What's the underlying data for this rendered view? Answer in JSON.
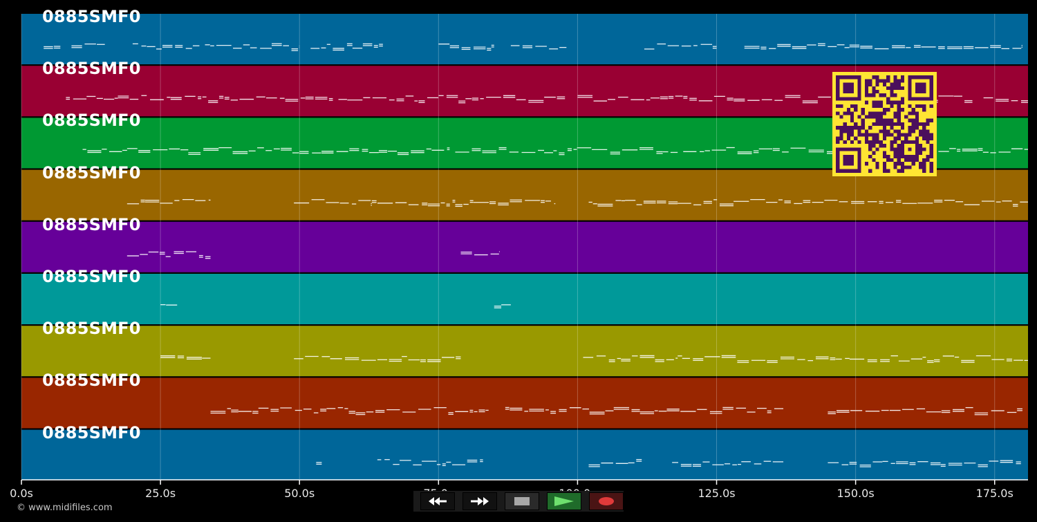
{
  "window": {
    "copyright": "© www.midifiles.com"
  },
  "timeline": {
    "duration_seconds": 181,
    "ticks": [
      {
        "t": 0,
        "label": "0.0s"
      },
      {
        "t": 25,
        "label": "25.0s"
      },
      {
        "t": 50,
        "label": "50.0s"
      },
      {
        "t": 75,
        "label": "75.0s"
      },
      {
        "t": 100,
        "label": "100.0s"
      },
      {
        "t": 125,
        "label": "125.0s"
      },
      {
        "t": 150,
        "label": "150.0s"
      },
      {
        "t": 175,
        "label": "175.0s"
      }
    ]
  },
  "tracks": [
    {
      "name": "0885SMF0",
      "color": "#006699"
    },
    {
      "name": "0885SMF0",
      "color": "#990033"
    },
    {
      "name": "0885SMF0",
      "color": "#009933"
    },
    {
      "name": "0885SMF0",
      "color": "#996600"
    },
    {
      "name": "0885SMF0",
      "color": "#660099"
    },
    {
      "name": "0885SMF0",
      "color": "#009999"
    },
    {
      "name": "0885SMF0",
      "color": "#999900"
    },
    {
      "name": "0885SMF0",
      "color": "#992600"
    },
    {
      "name": "0885SMF0",
      "color": "#006699"
    }
  ],
  "note_segments": [
    [
      [
        4,
        7
      ],
      [
        9,
        15
      ],
      [
        20,
        32
      ],
      [
        33,
        45
      ],
      [
        45,
        50
      ],
      [
        52,
        65
      ],
      [
        75,
        85
      ],
      [
        88,
        98
      ],
      [
        112,
        125
      ],
      [
        130,
        148
      ],
      [
        148,
        180
      ]
    ],
    [
      [
        8,
        56
      ],
      [
        57,
        98
      ],
      [
        100,
        150
      ],
      [
        150,
        171
      ],
      [
        173,
        181
      ]
    ],
    [
      [
        11,
        19
      ],
      [
        19,
        30
      ],
      [
        30,
        50
      ],
      [
        50,
        77
      ],
      [
        78,
        118
      ],
      [
        119,
        181
      ]
    ],
    [
      [
        19,
        34
      ],
      [
        49,
        63
      ],
      [
        63,
        78
      ],
      [
        78,
        96
      ],
      [
        102,
        118
      ],
      [
        118,
        181
      ]
    ],
    [
      [
        19,
        34
      ],
      [
        79,
        86
      ]
    ],
    [
      [
        25,
        28
      ],
      [
        85,
        88
      ]
    ],
    [
      [
        25,
        34
      ],
      [
        49,
        64
      ],
      [
        64,
        79
      ],
      [
        101,
        118
      ],
      [
        118,
        181
      ]
    ],
    [
      [
        34,
        84
      ],
      [
        87,
        137
      ],
      [
        145,
        180
      ]
    ],
    [
      [
        53,
        54
      ],
      [
        64,
        83
      ],
      [
        102,
        112
      ],
      [
        117,
        137
      ],
      [
        145,
        180
      ]
    ]
  ],
  "qr_code": {
    "fg": "#4b0f5c",
    "bg": "#ffe533"
  },
  "transport": {
    "buttons": [
      {
        "name": "rewind-button",
        "icon": "rewind-icon",
        "color": "#111111"
      },
      {
        "name": "fast-forward-button",
        "icon": "fast-forward-icon",
        "color": "#111111"
      },
      {
        "name": "stop-button",
        "icon": "stop-icon",
        "color": "#2a2a2a"
      },
      {
        "name": "play-button",
        "icon": "play-icon",
        "color": "#1f6b2a"
      },
      {
        "name": "record-button",
        "icon": "record-icon",
        "color": "#4a1414"
      }
    ]
  },
  "colors": {
    "background": "#000000",
    "grid": "#ffffff",
    "notes": "#ffffff"
  }
}
